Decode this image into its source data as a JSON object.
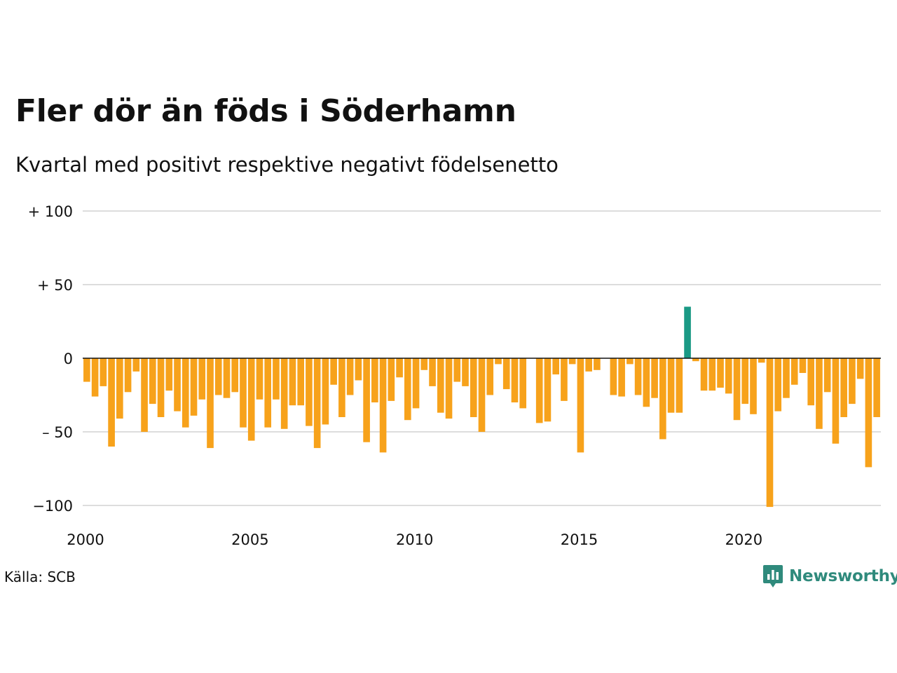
{
  "chart_data": {
    "type": "bar",
    "title": "Fler dör än föds i Söderhamn",
    "subtitle": "Kvartal med positivt respektive negativt födelsenetto",
    "ylim": [
      -100,
      100
    ],
    "y_ticks": [
      {
        "value": 100,
        "label": "+ 100"
      },
      {
        "value": 50,
        "label": "+  50"
      },
      {
        "value": 0,
        "label": "0"
      },
      {
        "value": -50,
        "label": "– 50"
      },
      {
        "value": -100,
        "label": "−100"
      }
    ],
    "x_ticks": [
      "2000",
      "2005",
      "2010",
      "2015",
      "2020"
    ],
    "x_start_year": 2000,
    "grid": true,
    "legend": "none",
    "colors": {
      "positive": "#1a9985",
      "negative": "#f7a21b",
      "grid": "#dddddd",
      "zero_line": "#111111"
    },
    "values": [
      -16,
      -26,
      -19,
      -60,
      -41,
      -23,
      -9,
      -50,
      -31,
      -40,
      -22,
      -36,
      -47,
      -39,
      -28,
      -61,
      -25,
      -27,
      -23,
      -47,
      -56,
      -28,
      -47,
      -28,
      -48,
      -32,
      -32,
      -46,
      -61,
      -45,
      -18,
      -40,
      -25,
      -15,
      -57,
      -30,
      -64,
      -29,
      -13,
      -42,
      -34,
      -8,
      -19,
      -37,
      -41,
      -16,
      -19,
      -40,
      -50,
      -25,
      -4,
      -21,
      -30,
      -34,
      0,
      -44,
      -43,
      -11,
      -29,
      -4,
      -64,
      -9,
      -8,
      0,
      -25,
      -26,
      -4,
      -25,
      -33,
      -27,
      -55,
      -37,
      -37,
      35,
      -2,
      -22,
      -22,
      -20,
      -24,
      -42,
      -31,
      -38,
      -3,
      -101,
      -36,
      -27,
      -18,
      -10,
      -32,
      -48,
      -23,
      -58,
      -40,
      -31,
      -14,
      -74,
      -40
    ]
  },
  "footer": {
    "source": "Källa: SCB",
    "brand": "Newsworthy",
    "brand_icon": "newsworthy-logo-icon"
  }
}
